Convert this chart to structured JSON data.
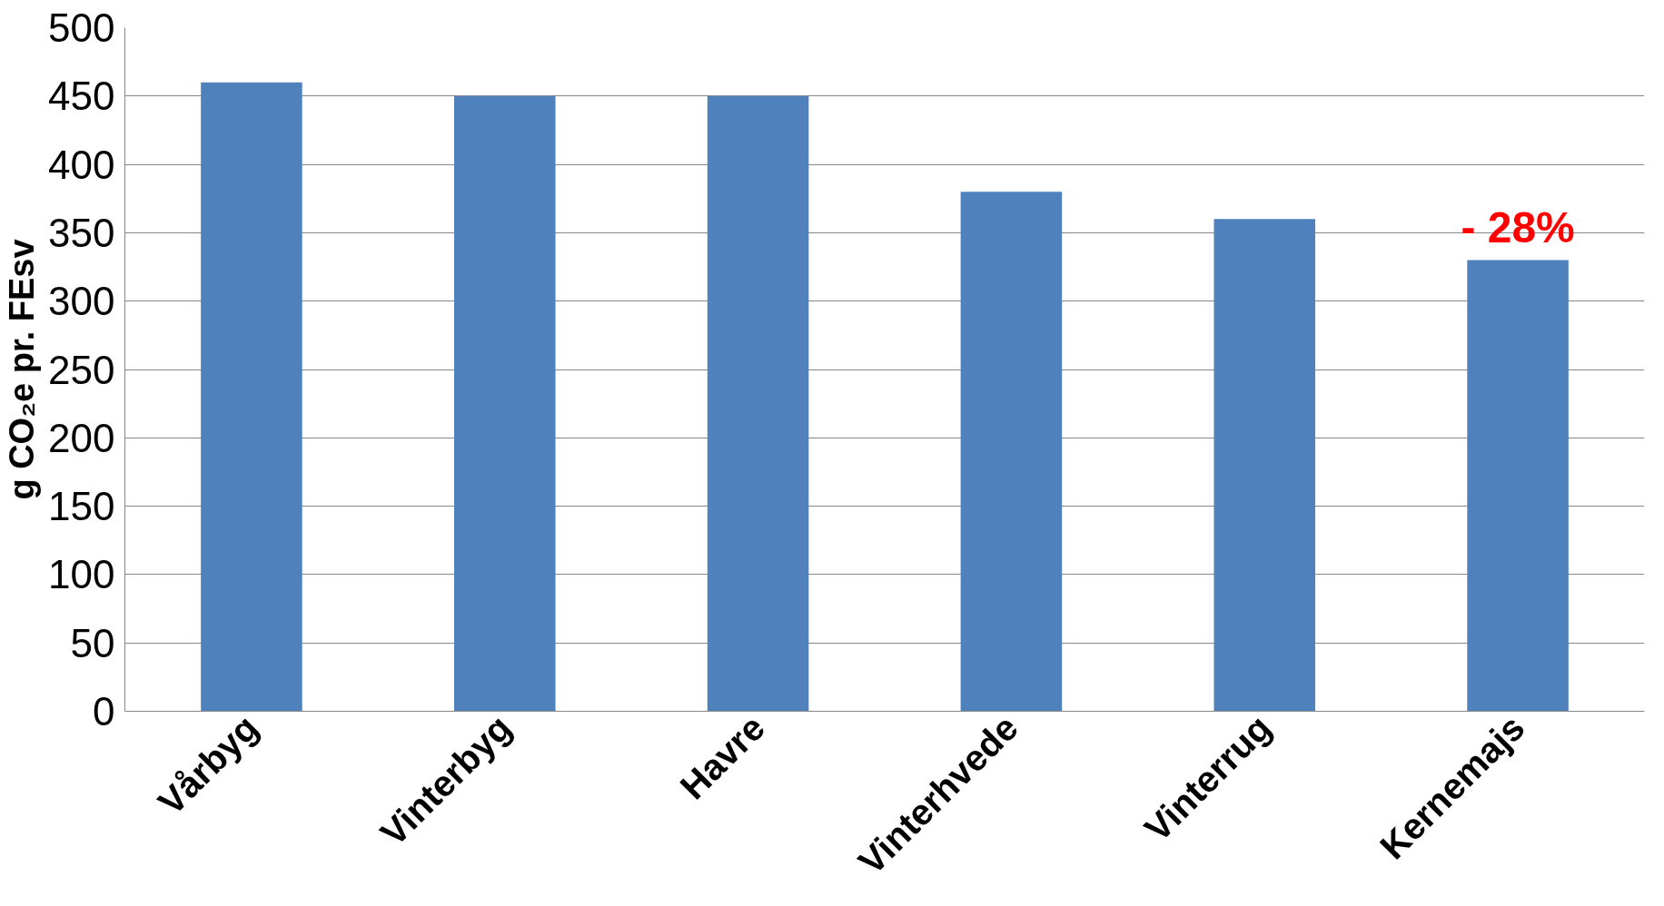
{
  "chart_data": {
    "type": "bar",
    "ylabel": "g CO₂e pr. FEsv",
    "categories": [
      "Vårbyg",
      "Vinterbyg",
      "Havre",
      "Vinterhvede",
      "Vinterrug",
      "Kernemajs"
    ],
    "values": [
      460,
      450,
      450,
      380,
      360,
      330
    ],
    "color": "#4f81bd",
    "ylim": [
      0,
      500
    ],
    "yticks": [
      0,
      50,
      100,
      150,
      200,
      250,
      300,
      350,
      400,
      450,
      500
    ],
    "grid": "y",
    "annotations": [
      "- 28%"
    ]
  }
}
